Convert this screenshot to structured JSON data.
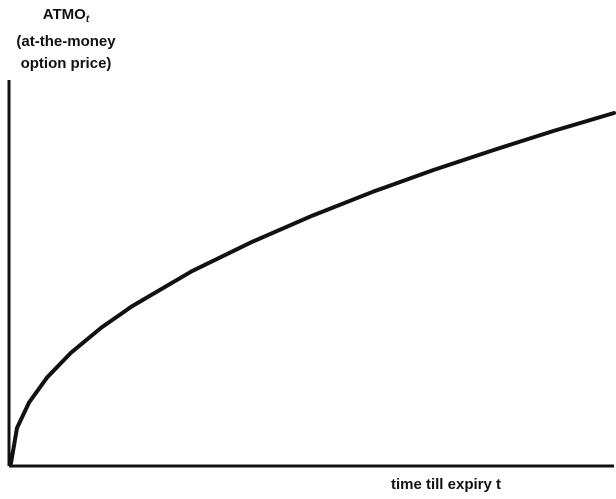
{
  "chart_data": {
    "type": "line",
    "title": "",
    "ylabel": {
      "main": "ATMO",
      "subscript": "t",
      "line2": "(at-the-money",
      "line3": "option price)"
    },
    "xlabel": "time till expiry t",
    "xlim": [
      0,
      1
    ],
    "ylim": [
      0,
      1
    ],
    "grid": false,
    "legend": "none",
    "series": [
      {
        "x": [
          0,
          0.01,
          0.03,
          0.06,
          0.1,
          0.15,
          0.2,
          0.3,
          0.4,
          0.5,
          0.6,
          0.7,
          0.8,
          0.9,
          1.0
        ],
        "values": [
          0.0,
          0.1,
          0.173,
          0.245,
          0.316,
          0.387,
          0.447,
          0.548,
          0.632,
          0.707,
          0.775,
          0.837,
          0.894,
          0.949,
          1.0
        ]
      }
    ],
    "colors": {
      "line": "#111111",
      "axis": "#111111"
    }
  }
}
